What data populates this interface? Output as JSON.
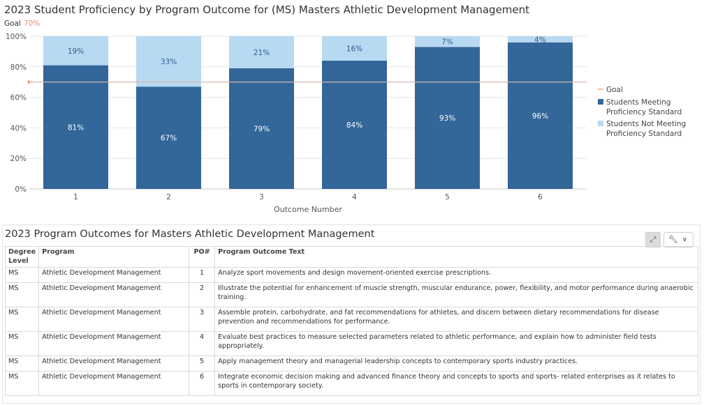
{
  "chart_data": {
    "type": "bar",
    "stacked": true,
    "title": "2023 Student Proficiency by Program Outcome for (MS) Masters Athletic Development Management",
    "goal_label": "Goal",
    "goal_value_text": "70%",
    "goal": 70,
    "categories": [
      "1",
      "2",
      "3",
      "4",
      "5",
      "6"
    ],
    "xlabel": "Outcome Number",
    "ylabel": "",
    "ylim": [
      0,
      100
    ],
    "y_ticks": [
      "0%",
      "20%",
      "40%",
      "60%",
      "80%",
      "100%"
    ],
    "grid": true,
    "legend_position": "right",
    "legend": [
      {
        "label": "Goal",
        "type": "line"
      },
      {
        "label": "Students Meeting Proficiency Standard",
        "type": "box"
      },
      {
        "label": "Students Not Meeting Proficiency Standard",
        "type": "box"
      }
    ],
    "series": [
      {
        "name": "Students Meeting Proficiency Standard",
        "values": [
          81,
          67,
          79,
          84,
          93,
          96
        ],
        "labels": [
          "81%",
          "67%",
          "79%",
          "84%",
          "93%",
          "96%"
        ]
      },
      {
        "name": "Students Not Meeting Proficiency Standard",
        "values": [
          19,
          33,
          21,
          16,
          7,
          4
        ],
        "labels": [
          "19%",
          "33%",
          "21%",
          "16%",
          "7%",
          "4%"
        ]
      }
    ],
    "colors": {
      "meeting": "#336699",
      "not_meeting": "#b8d9f2",
      "goal": "#f08a63",
      "meeting_label": "#ffffff",
      "not_meeting_label": "#2b5b8c"
    }
  },
  "table": {
    "title": "2023 Program Outcomes for Masters Athletic Development Management",
    "buttons": {
      "expand_icon": "expand-icon",
      "tools_icon": "wrench-icon",
      "chevron_icon": "chevron-down-icon"
    },
    "headers": [
      "Degree Level",
      "Program",
      "PO#",
      "Program Outcome Text"
    ],
    "rows": [
      {
        "level": "MS",
        "program": "Athletic Development Management",
        "po": "1",
        "text": "Analyze sport movements and design movement-oriented exercise prescriptions."
      },
      {
        "level": "MS",
        "program": "Athletic Development Management",
        "po": "2",
        "text": "Illustrate the potential for enhancement of muscle strength, muscular endurance, power, flexibility, and motor performance during anaerobic training."
      },
      {
        "level": "MS",
        "program": "Athletic Development Management",
        "po": "3",
        "text": "Assemble protein, carbohydrate, and fat recommendations for athletes, and discern between dietary recommendations for disease prevention and recommendations for performance."
      },
      {
        "level": "MS",
        "program": "Athletic Development Management",
        "po": "4",
        "text": "Evaluate best practices to measure selected parameters related to athletic performance, and explain how to administer field tests appropriately."
      },
      {
        "level": "MS",
        "program": "Athletic Development Management",
        "po": "5",
        "text": "Apply management theory and managerial leadership concepts to contemporary sports industry practices."
      },
      {
        "level": "MS",
        "program": "Athletic Development Management",
        "po": "6",
        "text": "Integrate economic decision making and advanced finance theory and concepts to sports and sports- related enterprises as it relates to sports in contemporary society."
      }
    ]
  }
}
